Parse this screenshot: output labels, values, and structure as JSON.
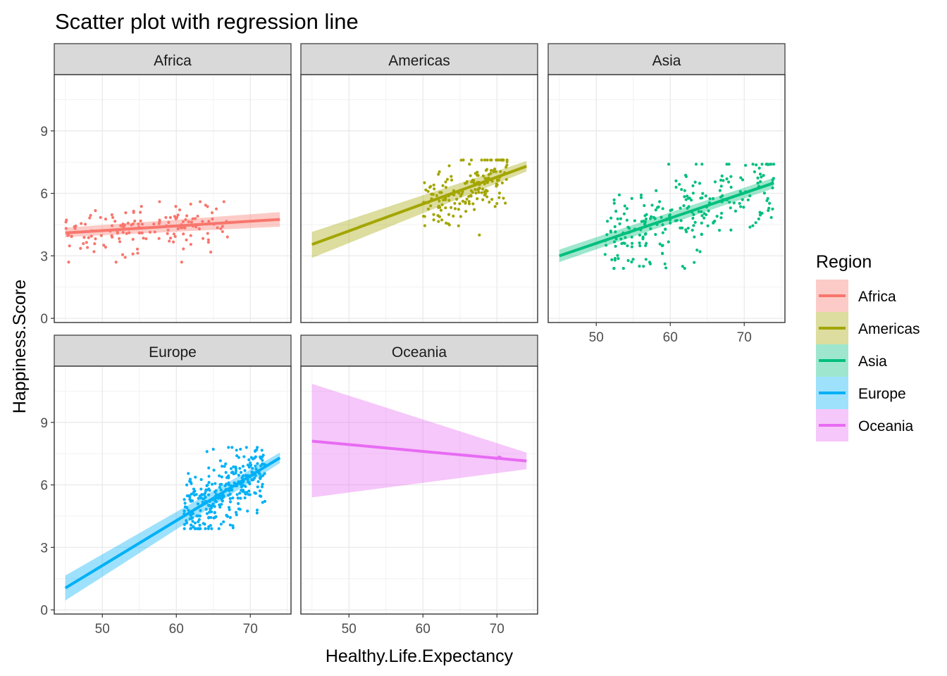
{
  "chart_data": {
    "type": "scatter",
    "title": "Scatter plot with regression line",
    "xlabel": "Healthy.Life.Expectancy",
    "ylabel": "Happiness.Score",
    "xlim": [
      43.5,
      75.5
    ],
    "ylim": [
      -0.2,
      11.7
    ],
    "x_ticks": [
      50,
      60,
      70
    ],
    "y_ticks": [
      0,
      3,
      6,
      9
    ],
    "legend": {
      "title": "Region",
      "placement": "right"
    },
    "colors": {
      "Africa": "#F8766D",
      "Americas": "#A3A500",
      "Asia": "#00BF7D",
      "Europe": "#00B0F6",
      "Oceania": "#E76BF3"
    },
    "facets": [
      {
        "name": "Africa",
        "regression": {
          "x": [
            45,
            74
          ],
          "y": [
            4.1,
            4.75
          ]
        },
        "ci_band": {
          "x": [
            45,
            74
          ],
          "lower": [
            3.9,
            4.4
          ],
          "upper": [
            4.35,
            5.1
          ]
        },
        "scatter": {
          "n": 150,
          "x_range": [
            45,
            67
          ],
          "y_range": [
            2.7,
            5.6
          ]
        }
      },
      {
        "name": "Americas",
        "regression": {
          "x": [
            45,
            74
          ],
          "y": [
            3.55,
            7.3
          ]
        },
        "ci_band": {
          "x": [
            45,
            74
          ],
          "lower": [
            2.9,
            7.05
          ],
          "upper": [
            4.15,
            7.55
          ]
        },
        "scatter": {
          "n": 180,
          "x_range": [
            60,
            71.5
          ],
          "y_range": [
            4.0,
            7.6
          ]
        }
      },
      {
        "name": "Asia",
        "regression": {
          "x": [
            45,
            74
          ],
          "y": [
            3.0,
            6.5
          ]
        },
        "ci_band": {
          "x": [
            45,
            74
          ],
          "lower": [
            2.7,
            6.25
          ],
          "upper": [
            3.3,
            6.75
          ]
        },
        "scatter": {
          "n": 260,
          "x_range": [
            51,
            74
          ],
          "y_range": [
            2.4,
            7.4
          ]
        }
      },
      {
        "name": "Europe",
        "regression": {
          "x": [
            45,
            74
          ],
          "y": [
            1.05,
            7.3
          ]
        },
        "ci_band": {
          "x": [
            45,
            74
          ],
          "lower": [
            0.45,
            7.05
          ],
          "upper": [
            1.65,
            7.55
          ]
        },
        "scatter": {
          "n": 320,
          "x_range": [
            61,
            72
          ],
          "y_range": [
            3.9,
            7.8
          ]
        }
      },
      {
        "name": "Oceania",
        "regression": {
          "x": [
            45,
            74
          ],
          "y": [
            8.1,
            7.15
          ]
        },
        "ci_band": {
          "x": [
            45,
            74
          ],
          "lower": [
            5.4,
            6.75
          ],
          "upper": [
            10.85,
            7.55
          ]
        },
        "scatter": {
          "n": 8,
          "x_range": [
            69.8,
            70.6
          ],
          "y_range": [
            7.2,
            7.35
          ]
        }
      }
    ]
  }
}
